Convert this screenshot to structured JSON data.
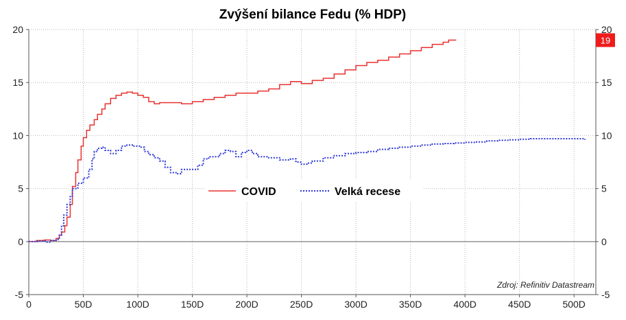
{
  "chart_data": {
    "type": "line",
    "title": "Zvýšení bilance Fedu (% HDP)",
    "source": "Zdroj: Refinitiv Datastream",
    "xlim": [
      0,
      520
    ],
    "ylim": [
      -5,
      20
    ],
    "x_ticks": [
      0,
      50,
      100,
      150,
      200,
      250,
      300,
      350,
      400,
      450,
      500
    ],
    "x_tick_labels": [
      "0",
      "50D",
      "100D",
      "150D",
      "200D",
      "250D",
      "300D",
      "350D",
      "400D",
      "450D",
      "500D"
    ],
    "y_ticks": [
      -5,
      0,
      5,
      10,
      15,
      20
    ],
    "y_tick_labels": [
      "-5",
      "0",
      "5",
      "10",
      "15",
      "20"
    ],
    "grid": true,
    "legend_position": "center",
    "last_value_label": "19",
    "series": [
      {
        "name": "COVID",
        "color": "#e8312f",
        "style": "solid",
        "points": [
          [
            0,
            0
          ],
          [
            7,
            0.1
          ],
          [
            14,
            0.15
          ],
          [
            20,
            0.1
          ],
          [
            25,
            0.3
          ],
          [
            28,
            0.6
          ],
          [
            30,
            0.9
          ],
          [
            33,
            1.5
          ],
          [
            35,
            2.3
          ],
          [
            38,
            3.5
          ],
          [
            40,
            5.2
          ],
          [
            43,
            6.5
          ],
          [
            45,
            7.7
          ],
          [
            48,
            9.0
          ],
          [
            50,
            9.8
          ],
          [
            53,
            10.5
          ],
          [
            56,
            11.0
          ],
          [
            60,
            11.5
          ],
          [
            63,
            12.0
          ],
          [
            67,
            12.5
          ],
          [
            70,
            13.0
          ],
          [
            75,
            13.5
          ],
          [
            80,
            13.8
          ],
          [
            85,
            14.0
          ],
          [
            90,
            14.1
          ],
          [
            95,
            14.0
          ],
          [
            100,
            13.8
          ],
          [
            105,
            13.6
          ],
          [
            110,
            13.2
          ],
          [
            115,
            13.0
          ],
          [
            120,
            13.1
          ],
          [
            130,
            13.1
          ],
          [
            140,
            13.0
          ],
          [
            150,
            13.2
          ],
          [
            160,
            13.4
          ],
          [
            170,
            13.6
          ],
          [
            180,
            13.8
          ],
          [
            190,
            14.0
          ],
          [
            200,
            14.0
          ],
          [
            210,
            14.2
          ],
          [
            220,
            14.4
          ],
          [
            230,
            14.8
          ],
          [
            240,
            15.1
          ],
          [
            250,
            14.9
          ],
          [
            260,
            15.2
          ],
          [
            270,
            15.4
          ],
          [
            280,
            15.8
          ],
          [
            290,
            16.2
          ],
          [
            300,
            16.6
          ],
          [
            310,
            16.9
          ],
          [
            320,
            17.1
          ],
          [
            330,
            17.4
          ],
          [
            340,
            17.7
          ],
          [
            350,
            18.0
          ],
          [
            360,
            18.3
          ],
          [
            370,
            18.6
          ],
          [
            380,
            18.8
          ],
          [
            385,
            19.0
          ],
          [
            392,
            19.0
          ]
        ]
      },
      {
        "name": "Velká recese",
        "color": "#2a36d8",
        "style": "dotted",
        "points": [
          [
            0,
            0
          ],
          [
            8,
            0.05
          ],
          [
            15,
            -0.05
          ],
          [
            20,
            0.1
          ],
          [
            25,
            0.2
          ],
          [
            28,
            0.6
          ],
          [
            30,
            1.5
          ],
          [
            32,
            2.5
          ],
          [
            35,
            3.5
          ],
          [
            38,
            4.3
          ],
          [
            40,
            5.0
          ],
          [
            45,
            5.5
          ],
          [
            50,
            6.0
          ],
          [
            55,
            6.8
          ],
          [
            58,
            7.8
          ],
          [
            60,
            8.5
          ],
          [
            63,
            8.8
          ],
          [
            67,
            8.9
          ],
          [
            70,
            8.6
          ],
          [
            75,
            8.3
          ],
          [
            80,
            8.6
          ],
          [
            85,
            9.0
          ],
          [
            90,
            9.1
          ],
          [
            95,
            9.0
          ],
          [
            100,
            9.0
          ],
          [
            103,
            8.9
          ],
          [
            106,
            8.5
          ],
          [
            110,
            8.2
          ],
          [
            115,
            7.9
          ],
          [
            120,
            7.6
          ],
          [
            125,
            7.0
          ],
          [
            130,
            6.5
          ],
          [
            135,
            6.4
          ],
          [
            140,
            6.8
          ],
          [
            150,
            6.8
          ],
          [
            155,
            7.2
          ],
          [
            160,
            7.8
          ],
          [
            165,
            8.0
          ],
          [
            170,
            8.0
          ],
          [
            175,
            8.3
          ],
          [
            180,
            8.6
          ],
          [
            185,
            8.5
          ],
          [
            190,
            8.0
          ],
          [
            195,
            8.4
          ],
          [
            200,
            8.6
          ],
          [
            205,
            8.3
          ],
          [
            210,
            8.0
          ],
          [
            220,
            7.9
          ],
          [
            230,
            7.7
          ],
          [
            240,
            7.8
          ],
          [
            245,
            7.5
          ],
          [
            250,
            7.3
          ],
          [
            255,
            7.4
          ],
          [
            260,
            7.6
          ],
          [
            270,
            7.9
          ],
          [
            280,
            8.1
          ],
          [
            290,
            8.3
          ],
          [
            300,
            8.4
          ],
          [
            310,
            8.5
          ],
          [
            320,
            8.7
          ],
          [
            330,
            8.8
          ],
          [
            340,
            8.9
          ],
          [
            350,
            9.0
          ],
          [
            360,
            9.1
          ],
          [
            370,
            9.2
          ],
          [
            380,
            9.25
          ],
          [
            390,
            9.3
          ],
          [
            400,
            9.35
          ],
          [
            410,
            9.4
          ],
          [
            420,
            9.5
          ],
          [
            430,
            9.55
          ],
          [
            440,
            9.6
          ],
          [
            450,
            9.65
          ],
          [
            460,
            9.7
          ],
          [
            470,
            9.7
          ],
          [
            480,
            9.7
          ],
          [
            490,
            9.7
          ],
          [
            500,
            9.7
          ],
          [
            510,
            9.6
          ]
        ]
      }
    ]
  }
}
